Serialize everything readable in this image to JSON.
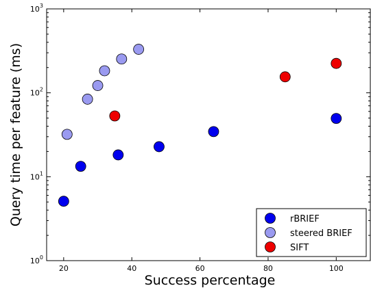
{
  "chart_data": {
    "type": "scatter",
    "xlabel": "Success percentage",
    "ylabel": "Query time per feature (ms)",
    "xlim": [
      15,
      110
    ],
    "ylim": [
      1,
      1000
    ],
    "y_scale": "log",
    "grid": false,
    "legend_position": "bottom-right",
    "x_ticks": [
      {
        "value": 20,
        "label": "20"
      },
      {
        "value": 40,
        "label": "40"
      },
      {
        "value": 60,
        "label": "60"
      },
      {
        "value": 80,
        "label": "80"
      },
      {
        "value": 100,
        "label": "100"
      }
    ],
    "y_ticks": [
      {
        "value": 1,
        "base": "10",
        "exp": "0"
      },
      {
        "value": 10,
        "base": "10",
        "exp": "1"
      },
      {
        "value": 100,
        "base": "10",
        "exp": "2"
      },
      {
        "value": 1000,
        "base": "10",
        "exp": "3"
      }
    ],
    "series": [
      {
        "name": "rBRIEF",
        "color": "#0000ee",
        "points": [
          {
            "x": 20,
            "y": 5.1
          },
          {
            "x": 25,
            "y": 13.3
          },
          {
            "x": 36,
            "y": 18.2
          },
          {
            "x": 48,
            "y": 22.8
          },
          {
            "x": 64,
            "y": 34.5
          },
          {
            "x": 100,
            "y": 49.5
          }
        ]
      },
      {
        "name": "steered BRIEF",
        "color": "#9a9af0",
        "points": [
          {
            "x": 21,
            "y": 32
          },
          {
            "x": 27,
            "y": 84
          },
          {
            "x": 30,
            "y": 122
          },
          {
            "x": 32,
            "y": 183
          },
          {
            "x": 37,
            "y": 253
          },
          {
            "x": 42,
            "y": 330
          }
        ]
      },
      {
        "name": "SIFT",
        "color": "#ee0000",
        "points": [
          {
            "x": 35,
            "y": 53
          },
          {
            "x": 85,
            "y": 155
          },
          {
            "x": 100,
            "y": 224
          }
        ]
      }
    ]
  }
}
